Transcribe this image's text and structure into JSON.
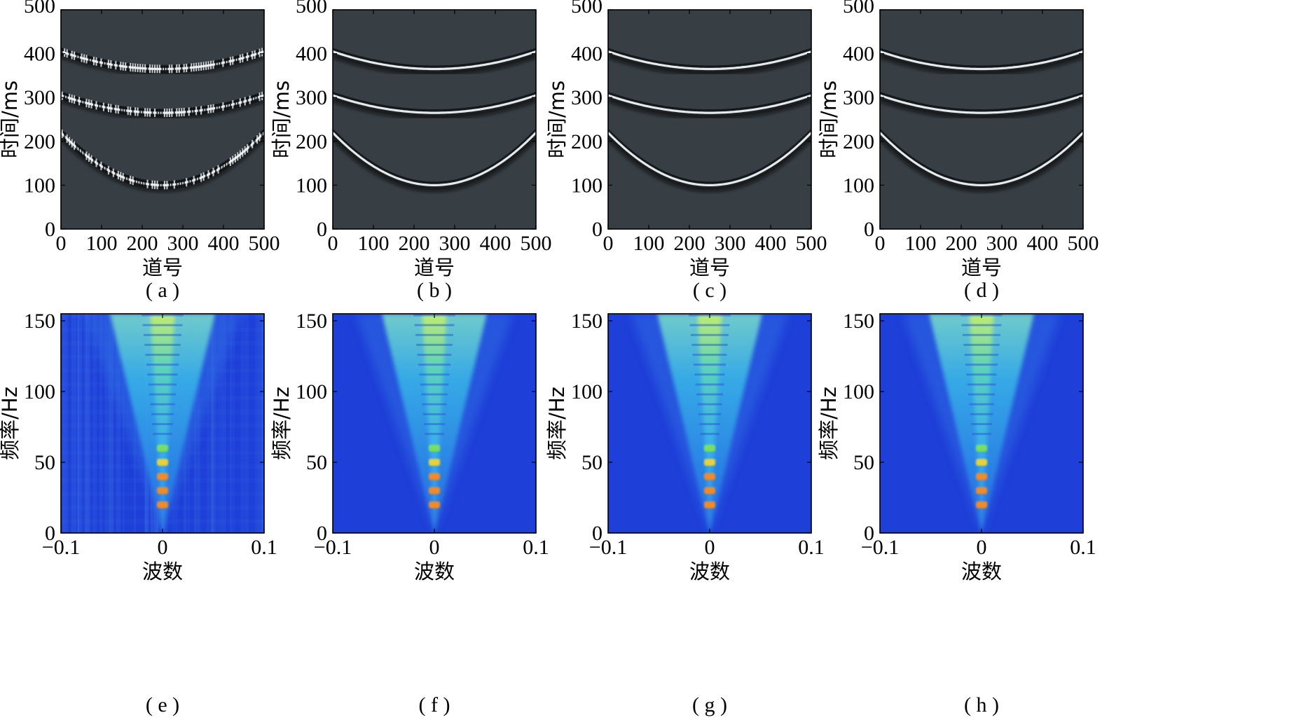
{
  "seismic": {
    "ylabel": "时间/ms",
    "xlabel": "道号",
    "x_ticks": [
      "0",
      "100",
      "200",
      "300",
      "400",
      "500"
    ],
    "y_ticks": [
      "0",
      "100",
      "200",
      "300",
      "400",
      "500"
    ]
  },
  "spectrum": {
    "ylabel": "频率/Hz",
    "xlabel": "波数",
    "x_ticks": [
      "−0.1",
      "0",
      "0.1"
    ],
    "y_ticks": [
      "0",
      "50",
      "100",
      "150"
    ]
  },
  "captions": [
    "( a )",
    "( b )",
    "( c )",
    "( d )",
    "( e )",
    "( f )",
    "( g )",
    "( h )"
  ],
  "chart_data": [
    {
      "type": "heatmap",
      "panel": "a",
      "xlabel": "道号",
      "ylabel": "时间/ms",
      "xlim": [
        0,
        500
      ],
      "ylim": [
        500,
        0
      ],
      "background_color": "#373f45",
      "noisy": true,
      "events": [
        {
          "apex_trace": 250,
          "apex_time_ms": 100,
          "edge_time_ms": 220
        },
        {
          "apex_trace": 250,
          "apex_time_ms": 265,
          "edge_time_ms": 305
        },
        {
          "apex_trace": 250,
          "apex_time_ms": 365,
          "edge_time_ms": 405
        }
      ]
    },
    {
      "type": "heatmap",
      "panel": "b",
      "xlabel": "道号",
      "ylabel": "时间/ms",
      "xlim": [
        0,
        500
      ],
      "ylim": [
        500,
        0
      ],
      "background_color": "#373f45",
      "noisy": false,
      "events": [
        {
          "apex_trace": 250,
          "apex_time_ms": 100,
          "edge_time_ms": 220
        },
        {
          "apex_trace": 250,
          "apex_time_ms": 265,
          "edge_time_ms": 305
        },
        {
          "apex_trace": 250,
          "apex_time_ms": 365,
          "edge_time_ms": 405
        }
      ]
    },
    {
      "type": "heatmap",
      "panel": "c",
      "xlabel": "道号",
      "ylabel": "时间/ms",
      "xlim": [
        0,
        500
      ],
      "ylim": [
        500,
        0
      ],
      "background_color": "#373f45",
      "noisy": false,
      "events": [
        {
          "apex_trace": 250,
          "apex_time_ms": 100,
          "edge_time_ms": 220
        },
        {
          "apex_trace": 250,
          "apex_time_ms": 265,
          "edge_time_ms": 305
        },
        {
          "apex_trace": 250,
          "apex_time_ms": 365,
          "edge_time_ms": 405
        }
      ]
    },
    {
      "type": "heatmap",
      "panel": "d",
      "xlabel": "道号",
      "ylabel": "时间/ms",
      "xlim": [
        0,
        500
      ],
      "ylim": [
        500,
        0
      ],
      "background_color": "#373f45",
      "noisy": false,
      "events": [
        {
          "apex_trace": 250,
          "apex_time_ms": 100,
          "edge_time_ms": 220
        },
        {
          "apex_trace": 250,
          "apex_time_ms": 265,
          "edge_time_ms": 305
        },
        {
          "apex_trace": 250,
          "apex_time_ms": 365,
          "edge_time_ms": 405
        }
      ]
    },
    {
      "type": "heatmap",
      "panel": "e",
      "xlabel": "波数",
      "ylabel": "频率/Hz",
      "xlim": [
        -0.1,
        0.1
      ],
      "ylim": [
        155,
        0
      ],
      "background_color": "#1e3fd8",
      "noisy": true,
      "cone": {
        "apex_wavenumber": 0,
        "apex_frequency_hz": 0,
        "halfwidth_at_150hz": 0.05
      },
      "peak_frequencies_hz": [
        20,
        30,
        40,
        50,
        60
      ]
    },
    {
      "type": "heatmap",
      "panel": "f",
      "xlabel": "波数",
      "ylabel": "频率/Hz",
      "xlim": [
        -0.1,
        0.1
      ],
      "ylim": [
        155,
        0
      ],
      "background_color": "#1e3fd8",
      "noisy": false,
      "cone": {
        "apex_wavenumber": 0,
        "apex_frequency_hz": 0,
        "halfwidth_at_150hz": 0.05
      },
      "peak_frequencies_hz": [
        20,
        30,
        40,
        50,
        60
      ]
    },
    {
      "type": "heatmap",
      "panel": "g",
      "xlabel": "波数",
      "ylabel": "频率/Hz",
      "xlim": [
        -0.1,
        0.1
      ],
      "ylim": [
        155,
        0
      ],
      "background_color": "#1e3fd8",
      "noisy": false,
      "cone": {
        "apex_wavenumber": 0,
        "apex_frequency_hz": 0,
        "halfwidth_at_150hz": 0.05
      },
      "peak_frequencies_hz": [
        20,
        30,
        40,
        50,
        60
      ]
    },
    {
      "type": "heatmap",
      "panel": "h",
      "xlabel": "波数",
      "ylabel": "频率/Hz",
      "xlim": [
        -0.1,
        0.1
      ],
      "ylim": [
        155,
        0
      ],
      "background_color": "#1e3fd8",
      "noisy": false,
      "cone": {
        "apex_wavenumber": 0,
        "apex_frequency_hz": 0,
        "halfwidth_at_150hz": 0.05
      },
      "peak_frequencies_hz": [
        20,
        30,
        40,
        50,
        60
      ]
    }
  ]
}
